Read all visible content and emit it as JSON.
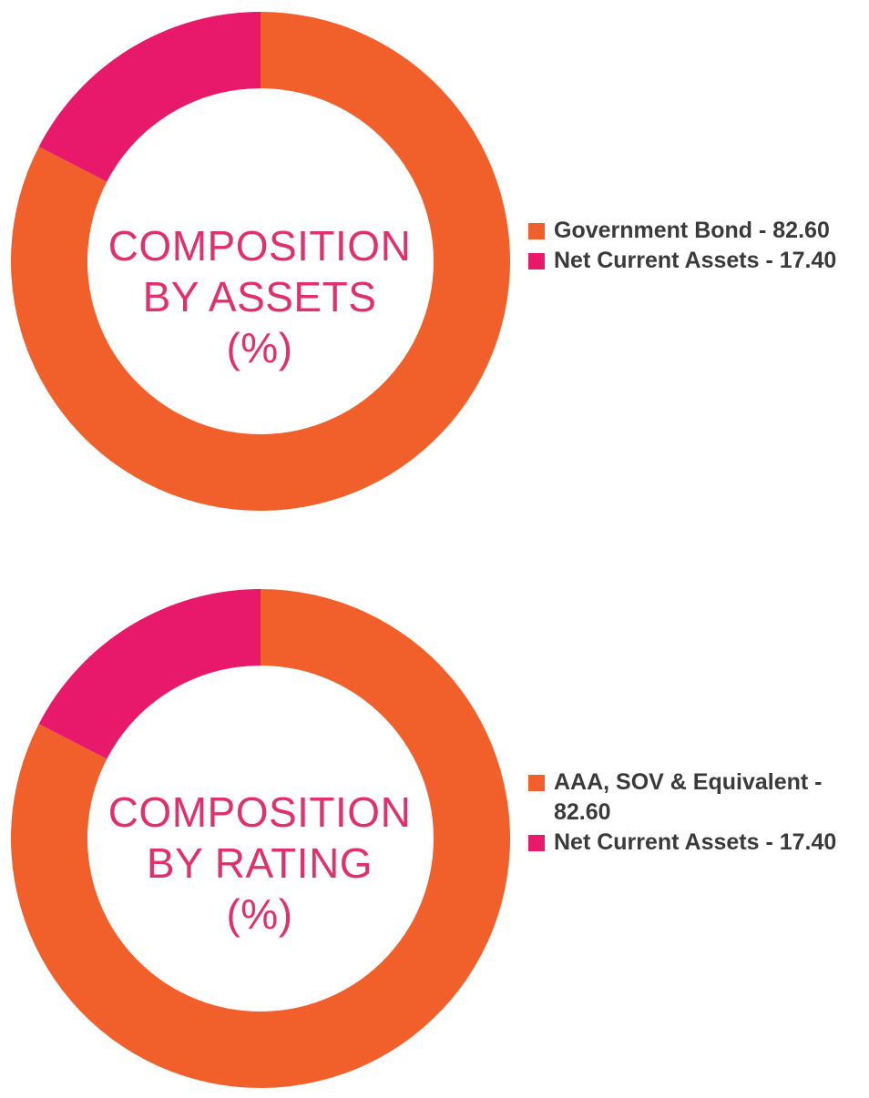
{
  "colors": {
    "orange": "#f15f2a",
    "pink": "#e8186a",
    "title_text": "#e0306e",
    "legend_text": "#3a3a3a"
  },
  "chart_data": [
    {
      "type": "pie",
      "style": "donut",
      "center_title": [
        "COMPOSITION",
        "BY ASSETS",
        "(%)"
      ],
      "slices": [
        {
          "label": "Government Bond",
          "value": 82.6,
          "color": "#f15f2a",
          "legend": "Government Bond - 82.60"
        },
        {
          "label": "Net Current Assets",
          "value": 17.4,
          "color": "#e8186a",
          "legend": "Net Current Assets - 17.40"
        }
      ],
      "legend_placement": "right"
    },
    {
      "type": "pie",
      "style": "donut",
      "center_title": [
        "COMPOSITION",
        "BY RATING",
        "(%)"
      ],
      "slices": [
        {
          "label": "AAA, SOV & Equivalent",
          "value": 82.6,
          "color": "#f15f2a",
          "legend": "AAA, SOV & Equivalent - 82.60"
        },
        {
          "label": "Net Current Assets",
          "value": 17.4,
          "color": "#e8186a",
          "legend": "Net Current Assets - 17.40"
        }
      ],
      "legend_placement": "right"
    }
  ]
}
